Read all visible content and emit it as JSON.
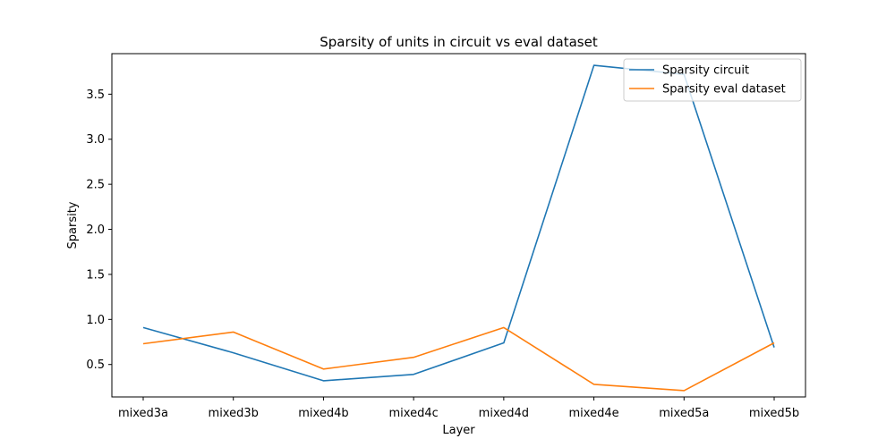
{
  "chart_data": {
    "type": "line",
    "title": "Sparsity of units in circuit vs eval dataset",
    "xlabel": "Layer",
    "ylabel": "Sparsity",
    "categories": [
      "mixed3a",
      "mixed3b",
      "mixed4b",
      "mixed4c",
      "mixed4d",
      "mixed4e",
      "mixed5a",
      "mixed5b"
    ],
    "y_ticks": [
      0.5,
      1.0,
      1.5,
      2.0,
      2.5,
      3.0,
      3.5
    ],
    "y_tick_labels": [
      "0.5",
      "1.0",
      "1.5",
      "2.0",
      "2.5",
      "3.0",
      "3.5"
    ],
    "ylim": [
      0.14,
      3.95
    ],
    "grid": false,
    "legend_position": "top-right",
    "series": [
      {
        "name": "Sparsity circuit",
        "color": "#1f77b4",
        "values": [
          0.91,
          0.63,
          0.32,
          0.39,
          0.74,
          3.82,
          3.72,
          0.69
        ]
      },
      {
        "name": "Sparsity eval dataset",
        "color": "#ff7f0e",
        "values": [
          0.73,
          0.86,
          0.45,
          0.58,
          0.91,
          0.28,
          0.21,
          0.74
        ]
      }
    ]
  }
}
